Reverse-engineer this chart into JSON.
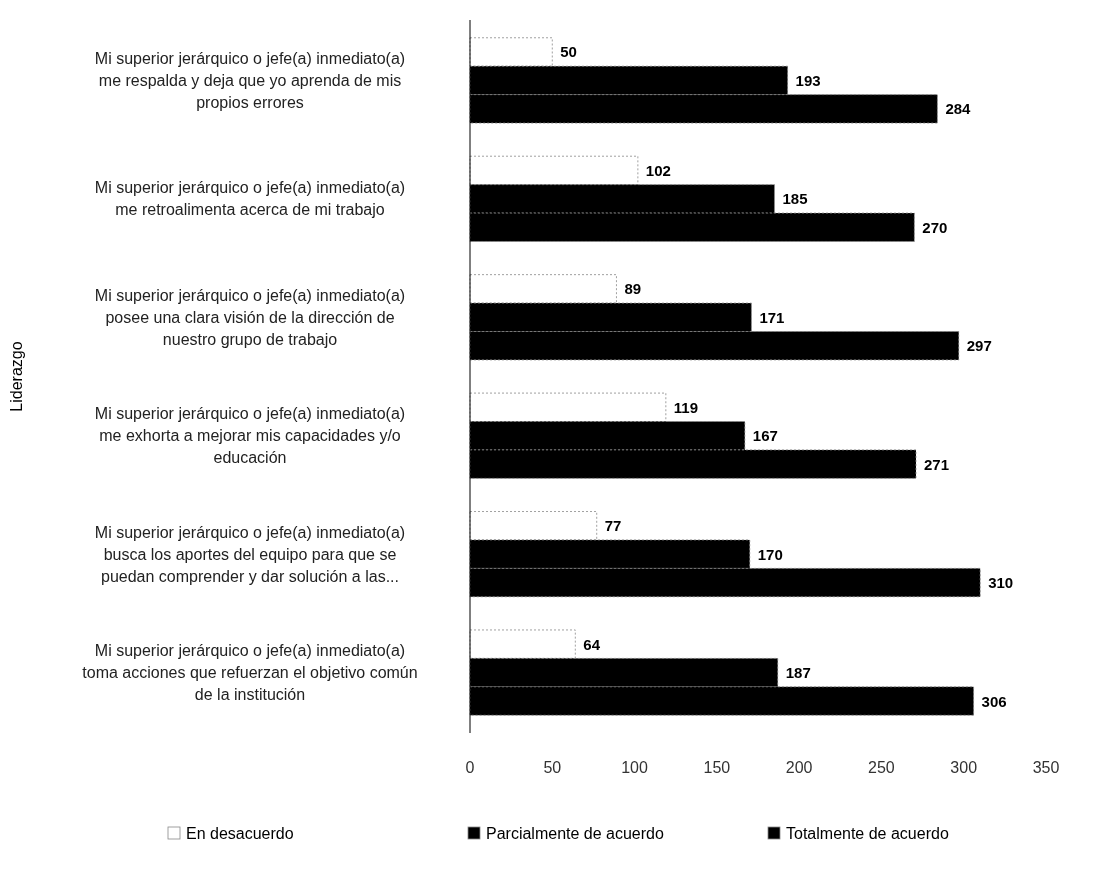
{
  "chart_data": {
    "type": "bar",
    "orientation": "horizontal",
    "ylabel": "Liderazgo",
    "categories": [
      "Mi superior jerárquico o jefe(a) inmediato(a) me respalda y deja que yo aprenda de mis propios errores",
      "Mi superior jerárquico o jefe(a) inmediato(a) me retroalimenta acerca de mi trabajo",
      "Mi superior jerárquico o jefe(a) inmediato(a) posee una clara visión de la dirección de nuestro grupo de trabajo",
      "Mi superior jerárquico o jefe(a) inmediato(a) me exhorta a mejorar mis capacidades y/o educación",
      "Mi superior jerárquico o jefe(a) inmediato(a) busca los aportes del equipo para que se puedan comprender y dar solución a las...",
      "Mi superior jerárquico o jefe(a) inmediato(a) toma acciones que refuerzan el objetivo común de la institución"
    ],
    "series": [
      {
        "name": "En desacuerdo",
        "color": "#ffffff",
        "values": [
          50,
          102,
          89,
          119,
          77,
          64
        ]
      },
      {
        "name": "Parcialmente de acuerdo",
        "color": "#000000",
        "values": [
          193,
          185,
          171,
          167,
          170,
          187
        ]
      },
      {
        "name": "Totalmente de acuerdo",
        "color": "#000000",
        "values": [
          284,
          270,
          297,
          271,
          310,
          306
        ]
      }
    ],
    "xlim": [
      0,
      350
    ],
    "xticks": [
      0,
      50,
      100,
      150,
      200,
      250,
      300,
      350
    ],
    "data_labels": true,
    "legend": "bottom",
    "grid": false
  }
}
